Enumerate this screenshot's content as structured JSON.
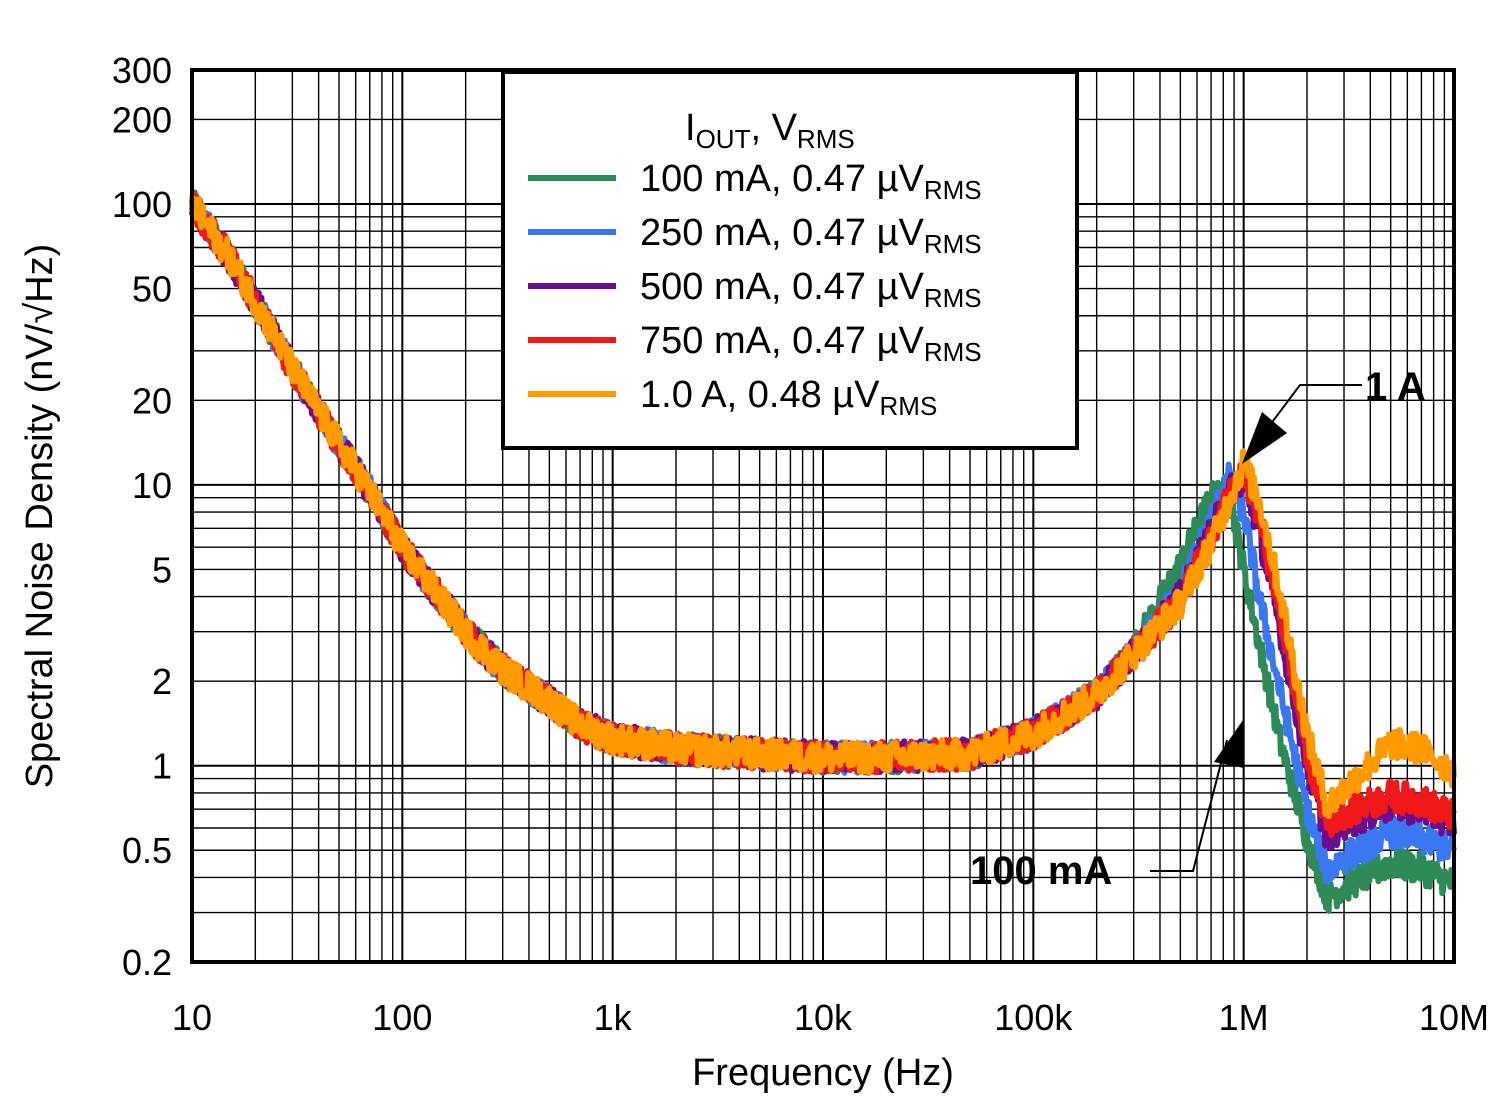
{
  "chart_data": {
    "type": "line",
    "xlabel": "Frequency (Hz)",
    "ylabel": "Spectral Noise Density (nV/√Hz)",
    "xscale": "log",
    "yscale": "log",
    "xlim": [
      10,
      10000000
    ],
    "ylim": [
      0.2,
      300
    ],
    "grid": true,
    "x_ticks": [
      {
        "value": 10,
        "label": "10"
      },
      {
        "value": 100,
        "label": "100"
      },
      {
        "value": 1000,
        "label": "1k"
      },
      {
        "value": 10000,
        "label": "10k"
      },
      {
        "value": 100000,
        "label": "100k"
      },
      {
        "value": 1000000,
        "label": "1M"
      },
      {
        "value": 10000000,
        "label": "10M"
      }
    ],
    "y_ticks": [
      {
        "value": 0.2,
        "label": "0.2"
      },
      {
        "value": 0.5,
        "label": "0.5"
      },
      {
        "value": 1,
        "label": "1"
      },
      {
        "value": 2,
        "label": "2"
      },
      {
        "value": 5,
        "label": "5"
      },
      {
        "value": 10,
        "label": "10"
      },
      {
        "value": 20,
        "label": "20"
      },
      {
        "value": 50,
        "label": "50"
      },
      {
        "value": 100,
        "label": "100"
      },
      {
        "value": 200,
        "label": "200"
      },
      {
        "value": 300,
        "label": "300"
      }
    ],
    "legend": {
      "placement": "top-center",
      "title_main_1": "I",
      "title_sub_1": "OUT",
      "title_main_2": ", V",
      "title_sub_2": "RMS"
    },
    "series": [
      {
        "label_main": "100 mA, 0.47 µV",
        "label_sub": "RMS",
        "color": "#2e8b57",
        "x": [
          10,
          15,
          20,
          30,
          50,
          70,
          100,
          150,
          200,
          300,
          500,
          700,
          1000,
          2000,
          5000,
          10000,
          20000,
          50000,
          100000,
          200000,
          300000,
          500000,
          700000,
          850000,
          1000000,
          1200000,
          1500000,
          2000000,
          2500000,
          3000000,
          5000000,
          7000000,
          10000000
        ],
        "y": [
          100,
          65,
          45,
          26,
          14,
          9.5,
          6,
          4,
          3,
          2.2,
          1.7,
          1.4,
          1.25,
          1.15,
          1.1,
          1.07,
          1.07,
          1.1,
          1.3,
          1.8,
          2.6,
          5.2,
          9,
          9.5,
          5,
          2.6,
          1.2,
          0.55,
          0.34,
          0.37,
          0.45,
          0.43,
          0.38
        ]
      },
      {
        "label_main": "250 mA, 0.47 µV",
        "label_sub": "RMS",
        "color": "#3a78f2",
        "x": [
          10,
          15,
          20,
          30,
          50,
          70,
          100,
          150,
          200,
          300,
          500,
          700,
          1000,
          2000,
          5000,
          10000,
          20000,
          50000,
          100000,
          200000,
          300000,
          500000,
          700000,
          850000,
          1000000,
          1200000,
          1500000,
          2000000,
          2500000,
          3000000,
          5000000,
          7000000,
          10000000
        ],
        "y": [
          100,
          65,
          45,
          26,
          14,
          9.5,
          6,
          4,
          3,
          2.2,
          1.7,
          1.4,
          1.25,
          1.15,
          1.1,
          1.07,
          1.07,
          1.1,
          1.3,
          1.8,
          2.5,
          4.2,
          7.5,
          10.5,
          8,
          3.8,
          1.8,
          0.7,
          0.42,
          0.47,
          0.58,
          0.55,
          0.5
        ]
      },
      {
        "label_main": "500 mA, 0.47 µV",
        "label_sub": "RMS",
        "color": "#6a0d91",
        "x": [
          10,
          15,
          20,
          30,
          50,
          70,
          100,
          150,
          200,
          300,
          500,
          700,
          1000,
          2000,
          5000,
          10000,
          20000,
          50000,
          100000,
          200000,
          300000,
          500000,
          700000,
          850000,
          1000000,
          1200000,
          1500000,
          2000000,
          2500000,
          3000000,
          5000000,
          7000000,
          10000000
        ],
        "y": [
          100,
          65,
          45,
          26,
          14,
          9.5,
          6,
          4,
          3,
          2.2,
          1.7,
          1.4,
          1.25,
          1.15,
          1.1,
          1.07,
          1.07,
          1.1,
          1.3,
          1.8,
          2.5,
          4.0,
          6.8,
          9.5,
          10.5,
          6.5,
          3,
          1,
          0.55,
          0.62,
          0.72,
          0.7,
          0.62
        ]
      },
      {
        "label_main": "750 mA, 0.47 µV",
        "label_sub": "RMS",
        "color": "#f01818",
        "x": [
          10,
          15,
          20,
          30,
          50,
          70,
          100,
          150,
          200,
          300,
          500,
          700,
          1000,
          2000,
          5000,
          10000,
          20000,
          50000,
          100000,
          200000,
          300000,
          500000,
          700000,
          850000,
          1000000,
          1200000,
          1500000,
          2000000,
          2500000,
          3000000,
          5000000,
          7000000,
          10000000
        ],
        "y": [
          100,
          65,
          45,
          26,
          14,
          9.5,
          6,
          4,
          3,
          2.2,
          1.7,
          1.4,
          1.25,
          1.15,
          1.1,
          1.07,
          1.07,
          1.1,
          1.3,
          1.8,
          2.5,
          3.9,
          6.5,
          9,
          11,
          7.5,
          3.4,
          1.1,
          0.62,
          0.68,
          0.78,
          0.75,
          0.66
        ]
      },
      {
        "label_main": " 1.0 A, 0.48 µV",
        "label_sub": "RMS",
        "color": "#ff9900",
        "x": [
          10,
          15,
          20,
          30,
          50,
          70,
          100,
          150,
          200,
          300,
          500,
          700,
          1000,
          2000,
          5000,
          10000,
          20000,
          50000,
          100000,
          200000,
          300000,
          500000,
          700000,
          850000,
          1000000,
          1200000,
          1500000,
          2000000,
          2500000,
          3000000,
          5000000,
          7000000,
          10000000
        ],
        "y": [
          100,
          65,
          45,
          26,
          14,
          9.5,
          6,
          4,
          3,
          2.2,
          1.7,
          1.4,
          1.25,
          1.15,
          1.1,
          1.07,
          1.07,
          1.1,
          1.3,
          1.8,
          2.5,
          3.8,
          6.2,
          8.8,
          12,
          8.5,
          4,
          1.3,
          0.72,
          0.82,
          1.2,
          1.15,
          0.95
        ]
      }
    ],
    "annotations": [
      {
        "text": "1 A",
        "point_x": 1000000,
        "point_y": 12.5
      },
      {
        "text": "100 mA",
        "point_x": 1000000,
        "point_y": 1.1
      }
    ]
  }
}
